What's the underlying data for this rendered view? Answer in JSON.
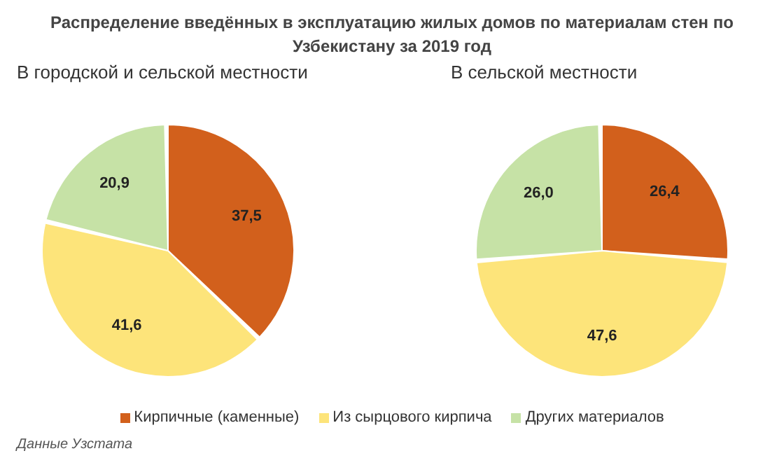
{
  "chart_data": [
    {
      "type": "pie",
      "title": "Распределение введённых в эксплуатацию жилых домов по материалам стен по Узбекистану за 2019 год",
      "subtitle": "В городской и сельской местности",
      "categories": [
        "Кирпичные (каменные)",
        "Из сырцового кирпича",
        "Других материалов"
      ],
      "values": [
        37.5,
        41.6,
        20.9
      ],
      "value_labels": [
        "37,5",
        "41,6",
        "20,9"
      ],
      "colors": [
        "#d2601c",
        "#fde47a",
        "#c6e2a6"
      ],
      "legend": "bottom",
      "annotations": [
        "Данные Узстата"
      ]
    },
    {
      "type": "pie",
      "subtitle": "В сельской местности",
      "values": [
        26.4,
        47.6,
        26.0
      ],
      "value_labels": [
        "26,4",
        "47,6",
        "26,0"
      ],
      "colors": [
        "#d2601c",
        "#fde47a",
        "#c6e2a6"
      ]
    }
  ]
}
